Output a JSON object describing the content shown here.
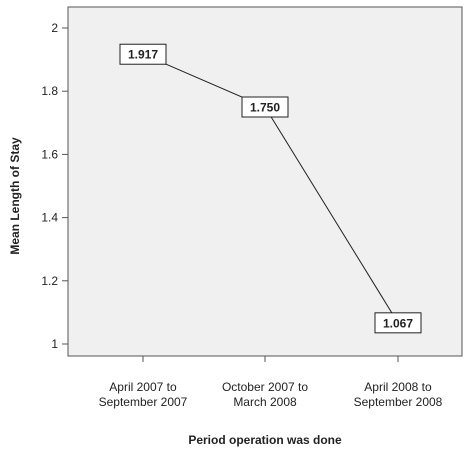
{
  "chart_data": {
    "type": "line",
    "title": "",
    "xlabel": "Period operation was done",
    "ylabel": "Mean Length of Stay",
    "categories": [
      [
        "April 2007 to",
        "September 2007"
      ],
      [
        "October 2007 to",
        "March 2008"
      ],
      [
        "April 2008 to",
        "September 2008"
      ]
    ],
    "series": [
      {
        "values": [
          1.917,
          1.75,
          1.067
        ]
      }
    ],
    "data_labels": [
      "1.917",
      "1.750",
      "1.067"
    ],
    "ylim": [
      1,
      2
    ],
    "yticks": [
      1,
      1.2,
      1.4,
      1.6,
      1.8,
      2
    ],
    "ytick_labels": [
      "1",
      "1.2",
      "1.4",
      "1.6",
      "1.8",
      "2"
    ],
    "grid": false,
    "legend": "none",
    "colors": {
      "plot_background": "#f0f0f0",
      "plot_border": "#555555",
      "line": "#222222",
      "label_box_fill": "#ffffff",
      "label_box_border": "#222222"
    }
  }
}
